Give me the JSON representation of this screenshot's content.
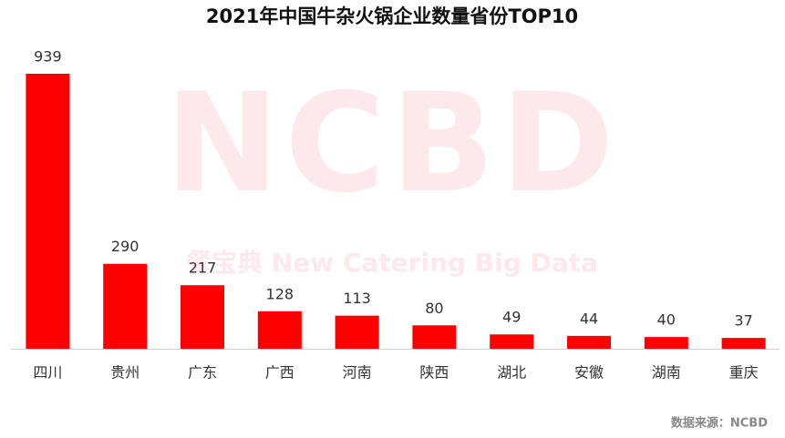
{
  "chart_data": {
    "type": "bar",
    "title": "2021年中国牛杂火锅企业数量省份TOP10",
    "categories": [
      "四川",
      "贵州",
      "广东",
      "广西",
      "河南",
      "陕西",
      "湖北",
      "安徽",
      "湖南",
      "重庆"
    ],
    "values": [
      939,
      290,
      217,
      128,
      113,
      80,
      49,
      44,
      40,
      37
    ],
    "color": "#ff0000",
    "watermark": "NCBD",
    "watermark_subtitle": "餐宝典 New Catering Big Data",
    "source": "数据来源：NCBD"
  }
}
